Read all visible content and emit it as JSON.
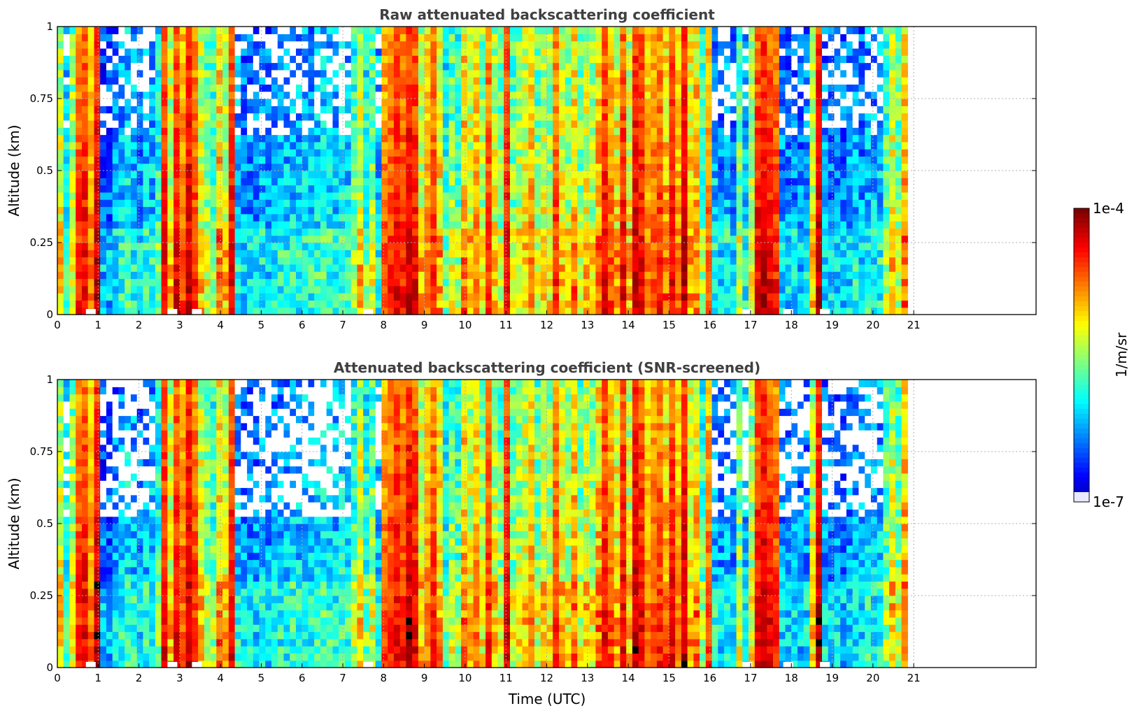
{
  "chart_data": [
    {
      "type": "heatmap",
      "title": "Raw attenuated backscattering coefficient",
      "xlabel": "",
      "ylabel": "Altitude (km)",
      "xlim": [
        0,
        24
      ],
      "ylim": [
        0,
        1
      ],
      "x_ticks": [
        "0",
        "1",
        "2",
        "3",
        "4",
        "5",
        "6",
        "7",
        "8",
        "9",
        "10",
        "11",
        "12",
        "13",
        "14",
        "15",
        "16",
        "17",
        "18",
        "19",
        "20",
        "21"
      ],
      "y_ticks": [
        "0",
        "0.25",
        "0.5",
        "0.75",
        "1"
      ],
      "y_tick_values": [
        0,
        0.25,
        0.5,
        0.75,
        1
      ],
      "grid": true,
      "data_end_time": 20.8,
      "screened": false
    },
    {
      "type": "heatmap",
      "title": "Attenuated backscattering coefficient (SNR-screened)",
      "xlabel": "Time (UTC)",
      "ylabel": "Altitude (km)",
      "xlim": [
        0,
        24
      ],
      "ylim": [
        0,
        1
      ],
      "x_ticks": [
        "0",
        "1",
        "2",
        "3",
        "4",
        "5",
        "6",
        "7",
        "8",
        "9",
        "10",
        "11",
        "12",
        "13",
        "14",
        "15",
        "16",
        "17",
        "18",
        "19",
        "20",
        "21"
      ],
      "y_ticks": [
        "0",
        "0.25",
        "0.5",
        "0.75",
        "1"
      ],
      "y_tick_values": [
        0,
        0.25,
        0.5,
        0.75,
        1
      ],
      "grid": true,
      "data_end_time": 20.8,
      "screened": true
    }
  ],
  "colorbar": {
    "max_label": "1e-4",
    "min_label": "1e-7",
    "label": "1/m/sr",
    "colormap": "jet",
    "scale": "log"
  },
  "profiles": {
    "note_colors": "intensity levels 0..1 of log10 backscatter, hours as x",
    "time": [
      0,
      0.15,
      0.3,
      0.45,
      0.6,
      0.75,
      0.9,
      1.05,
      1.2,
      1.35,
      1.5,
      1.65,
      1.8,
      1.95,
      2.1,
      2.25,
      2.4,
      2.55,
      2.7,
      2.85,
      3.0,
      3.15,
      3.3,
      3.45,
      3.6,
      3.75,
      3.9,
      4.05,
      4.2,
      4.35,
      4.5,
      4.65,
      4.8,
      4.95,
      5.1,
      5.25,
      5.4,
      5.55,
      5.7,
      5.85,
      6.0,
      6.15,
      6.3,
      6.45,
      6.6,
      6.75,
      6.9,
      7.05,
      7.2,
      7.35,
      7.5,
      7.65,
      7.8,
      7.95,
      8.1,
      8.25,
      8.4,
      8.55,
      8.7,
      8.85,
      9.0,
      9.15,
      9.3,
      9.45,
      9.6,
      9.75,
      9.9,
      10.05,
      10.2,
      10.35,
      10.5,
      10.65,
      10.8,
      10.95,
      11.1,
      11.25,
      11.4,
      11.55,
      11.7,
      11.85,
      12.0,
      12.15,
      12.3,
      12.45,
      12.6,
      12.75,
      12.9,
      13.05,
      13.2,
      13.35,
      13.5,
      13.65,
      13.8,
      13.95,
      14.1,
      14.25,
      14.4,
      14.55,
      14.7,
      14.85,
      15.0,
      15.15,
      15.3,
      15.45,
      15.6,
      15.75,
      15.9,
      16.05,
      16.2,
      16.35,
      16.5,
      16.65,
      16.8,
      16.95,
      17.1,
      17.25,
      17.4,
      17.55,
      17.7,
      17.85,
      18.0,
      18.15,
      18.3,
      18.45,
      18.6,
      18.75,
      18.9,
      19.05,
      19.2,
      19.35,
      19.5,
      19.65,
      19.8,
      19.95,
      20.1,
      20.25,
      20.4,
      20.55,
      20.7
    ],
    "column_base": [
      0.6,
      0.35,
      0.55,
      0.85,
      0.9,
      0.75,
      0.95,
      0.2,
      0.2,
      0.25,
      0.3,
      0.35,
      0.3,
      0.25,
      0.3,
      0.3,
      0.4,
      0.9,
      0.6,
      0.9,
      0.8,
      0.95,
      0.85,
      0.6,
      0.5,
      0.45,
      0.7,
      0.6,
      0.9,
      0.3,
      0.25,
      0.25,
      0.25,
      0.28,
      0.25,
      0.28,
      0.3,
      0.3,
      0.32,
      0.3,
      0.32,
      0.3,
      0.33,
      0.35,
      0.33,
      0.3,
      0.35,
      0.33,
      0.45,
      0.6,
      0.4,
      0.5,
      0.3,
      0.8,
      0.85,
      0.9,
      0.85,
      0.95,
      0.9,
      0.6,
      0.75,
      0.85,
      0.65,
      0.4,
      0.5,
      0.45,
      0.7,
      0.6,
      0.75,
      0.55,
      0.85,
      0.6,
      0.5,
      0.9,
      0.5,
      0.55,
      0.6,
      0.75,
      0.5,
      0.6,
      0.55,
      0.85,
      0.6,
      0.55,
      0.7,
      0.5,
      0.6,
      0.55,
      0.7,
      0.9,
      0.8,
      0.65,
      0.9,
      0.6,
      0.95,
      0.9,
      0.75,
      0.8,
      0.85,
      0.7,
      0.9,
      0.75,
      0.95,
      0.65,
      0.7,
      0.45,
      0.8,
      0.3,
      0.25,
      0.3,
      0.25,
      0.5,
      0.3,
      0.55,
      0.9,
      0.95,
      0.9,
      0.85,
      0.25,
      0.22,
      0.25,
      0.22,
      0.25,
      0.6,
      0.95,
      0.25,
      0.22,
      0.25,
      0.22,
      0.25,
      0.28,
      0.25,
      0.3,
      0.28,
      0.3,
      0.45,
      0.6,
      0.5,
      0.7
    ]
  }
}
